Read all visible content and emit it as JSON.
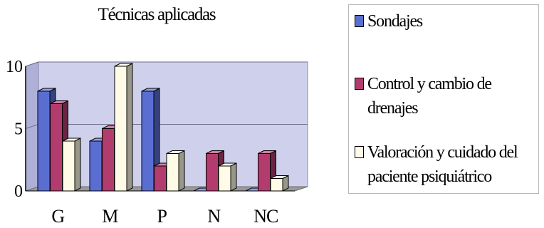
{
  "chart_data": {
    "type": "bar",
    "title": "Técnicas aplicadas",
    "categories": [
      "G",
      "M",
      "P",
      "N",
      "NC"
    ],
    "series": [
      {
        "name": "Sondajes",
        "values": [
          8,
          4,
          8,
          0,
          0
        ],
        "color": "#5a6ed2"
      },
      {
        "name": "Control y cambio de drenajes",
        "values": [
          7,
          5,
          2,
          3,
          3
        ],
        "color": "#b23c6e"
      },
      {
        "name": "Valoración y cuidado del paciente psiquiátrico",
        "values": [
          4,
          10,
          3,
          2,
          1
        ],
        "color": "#fffbe6"
      }
    ],
    "ylim": [
      0,
      10
    ],
    "yticks": [
      0,
      5,
      10
    ],
    "grid": true,
    "legend": "right",
    "plot_background": "#cfd0ec"
  }
}
